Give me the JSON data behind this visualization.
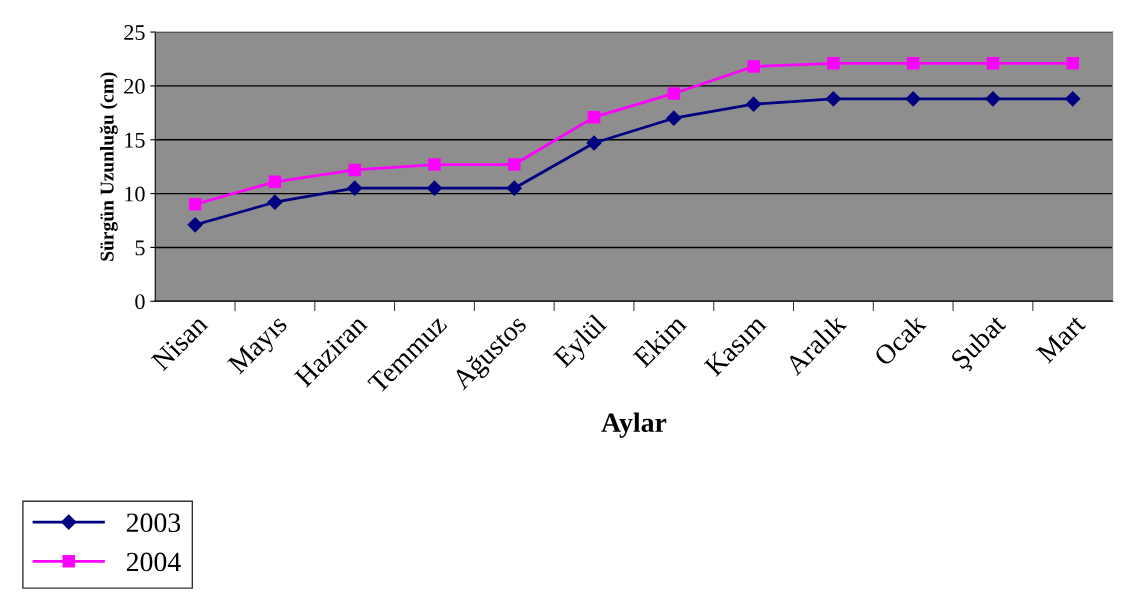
{
  "chart_data": {
    "type": "line",
    "xlabel": "Aylar",
    "ylabel": "Sürgün Uzunluğu (cm)",
    "categories": [
      "Nisan",
      "Mayıs",
      "Haziran",
      "Temmuz",
      "Ağustos",
      "Eylül",
      "Ekim",
      "Kasım",
      "Aralık",
      "Ocak",
      "Şubat",
      "Mart"
    ],
    "series": [
      {
        "name": "2003",
        "color": "#000080",
        "marker": "diamond",
        "values": [
          7.1,
          9.2,
          10.5,
          10.5,
          10.5,
          14.7,
          17.0,
          18.3,
          18.8,
          18.8,
          18.8,
          18.8
        ]
      },
      {
        "name": "2004",
        "color": "#ff00ff",
        "marker": "square",
        "values": [
          9.0,
          11.1,
          12.2,
          12.7,
          12.7,
          17.1,
          19.3,
          21.8,
          22.1,
          22.1,
          22.1,
          22.1
        ]
      }
    ],
    "ylim": [
      0,
      25
    ],
    "yticks": [
      0,
      5,
      10,
      15,
      20,
      25
    ],
    "grid": "y",
    "legend": "bottom left",
    "line_style": "solid"
  }
}
